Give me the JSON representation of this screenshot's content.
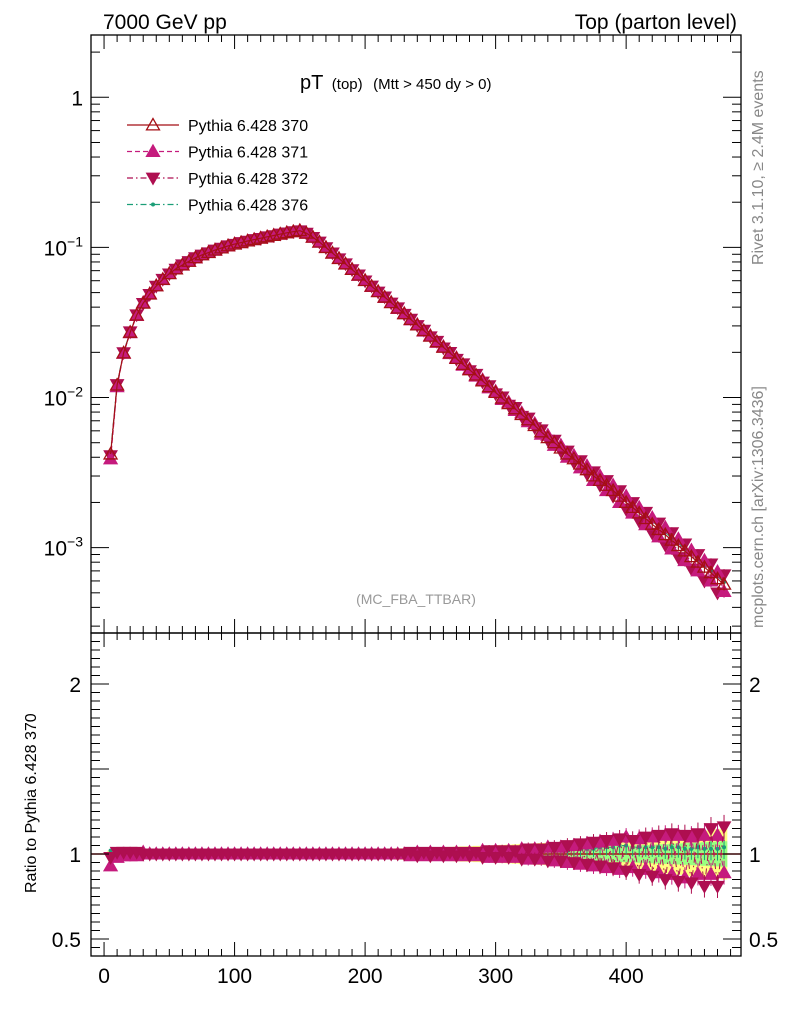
{
  "header": {
    "left": "7000 GeV pp",
    "right": "Top (parton level)"
  },
  "side_labels": {
    "rivet": "Rivet 3.1.10, ≥ 2.4M events",
    "mcplots": "mcplots.cern.ch [arXiv:1306.3436]"
  },
  "plot_title": {
    "main": "pT",
    "sub": "(top)",
    "cut": "(Mtt > 450 dy > 0)"
  },
  "analysis_tag": "(MC_FBA_TTBAR)",
  "ratio_ylabel": "Ratio to Pythia 6.428 370",
  "chart_data": {
    "type": "line",
    "title": "pT (top) (Mtt > 450 dy > 0)",
    "xlabel": "",
    "ylabel": "",
    "main_panel": {
      "yscale": "log",
      "xlim": [
        -10,
        488
      ],
      "ylim": [
        0.00027,
        2.6
      ],
      "y_tick_labels": [
        "1",
        "10^-1",
        "10^-2",
        "10^-3"
      ],
      "x_tick_labels": [
        "0",
        "100",
        "200",
        "300",
        "400"
      ],
      "x": [
        5,
        10,
        15,
        20,
        25,
        30,
        35,
        40,
        45,
        50,
        55,
        60,
        65,
        70,
        75,
        80,
        85,
        90,
        95,
        100,
        105,
        110,
        115,
        120,
        125,
        130,
        135,
        140,
        145,
        150,
        155,
        160,
        165,
        170,
        175,
        180,
        185,
        190,
        195,
        200,
        205,
        210,
        215,
        220,
        225,
        230,
        235,
        240,
        245,
        250,
        255,
        260,
        265,
        270,
        275,
        280,
        285,
        290,
        295,
        300,
        305,
        310,
        315,
        320,
        325,
        330,
        335,
        340,
        345,
        350,
        355,
        360,
        365,
        370,
        375,
        380,
        385,
        390,
        395,
        400,
        405,
        410,
        415,
        420,
        425,
        430,
        435,
        440,
        445,
        450,
        455,
        460,
        465,
        470,
        475
      ],
      "series": [
        {
          "name": "Pythia 6.428 370",
          "color": "#a50f15",
          "marker": "triangle-up-open",
          "line": "solid",
          "values": [
            0.0042,
            0.0121,
            0.0198,
            0.0272,
            0.0354,
            0.0425,
            0.0489,
            0.0554,
            0.0612,
            0.0668,
            0.0719,
            0.0764,
            0.0807,
            0.0853,
            0.0892,
            0.0924,
            0.0959,
            0.0991,
            0.1024,
            0.1052,
            0.1076,
            0.1103,
            0.1128,
            0.1151,
            0.1176,
            0.1201,
            0.1226,
            0.1251,
            0.1273,
            0.1292,
            0.1244,
            0.1168,
            0.1085,
            0.0998,
            0.0917,
            0.0843,
            0.0776,
            0.0713,
            0.0654,
            0.0601,
            0.0551,
            0.0507,
            0.0466,
            0.0428,
            0.0394,
            0.0361,
            0.0331,
            0.0304,
            0.0279,
            0.0256,
            0.0235,
            0.0216,
            0.0198,
            0.0182,
            0.0166,
            0.0153,
            0.0141,
            0.0129,
            0.0118,
            0.0108,
            0.0099,
            0.0091,
            0.0084,
            0.0077,
            0.0071,
            0.0065,
            0.0059,
            0.0054,
            0.005,
            0.0046,
            0.0042,
            0.0039,
            0.0036,
            0.0033,
            0.003,
            0.0028,
            0.0026,
            0.0024,
            0.0022,
            0.002,
            0.00185,
            0.0017,
            0.00156,
            0.00143,
            0.00132,
            0.00122,
            0.00112,
            0.00103,
            0.00095,
            0.00087,
            0.0008,
            0.00074,
            0.00068,
            0.00062,
            0.00057
          ]
        },
        {
          "name": "Pythia 6.428 371",
          "color": "#c51b7d",
          "marker": "triangle-up-filled",
          "line": "dashed",
          "values": [
            0.0039,
            0.0118,
            0.0197,
            0.027,
            0.0352,
            0.0428,
            0.0491,
            0.0556,
            0.061,
            0.067,
            0.0721,
            0.0762,
            0.0809,
            0.0851,
            0.0894,
            0.0926,
            0.0957,
            0.0993,
            0.1022,
            0.1054,
            0.1074,
            0.1105,
            0.1126,
            0.1153,
            0.1174,
            0.1203,
            0.1224,
            0.1253,
            0.1271,
            0.1294,
            0.1242,
            0.117,
            0.1083,
            0.1,
            0.0915,
            0.0845,
            0.0774,
            0.0715,
            0.0652,
            0.0603,
            0.0549,
            0.0509,
            0.0464,
            0.043,
            0.0392,
            0.0363,
            0.0329,
            0.0306,
            0.0277,
            0.0258,
            0.0233,
            0.0218,
            0.0196,
            0.0184,
            0.0164,
            0.0155,
            0.0139,
            0.0131,
            0.0116,
            0.011,
            0.0097,
            0.0093,
            0.0082,
            0.0079,
            0.0069,
            0.0067,
            0.0057,
            0.0056,
            0.0048,
            0.0048,
            0.004,
            0.0041,
            0.0034,
            0.0035,
            0.0028,
            0.003,
            0.0024,
            0.0026,
            0.002,
            0.0022,
            0.0017,
            0.00185,
            0.00142,
            0.00158,
            0.00118,
            0.00136,
            0.00098,
            0.00114,
            0.00082,
            0.00096,
            0.0007,
            0.00082,
            0.0006,
            0.00069,
            0.00051
          ]
        },
        {
          "name": "Pythia 6.428 372",
          "color": "#ae0f50",
          "marker": "triangle-down-filled",
          "line": "dash-dot",
          "values": [
            0.0041,
            0.0122,
            0.0199,
            0.0274,
            0.0356,
            0.0424,
            0.0487,
            0.0552,
            0.0614,
            0.0666,
            0.0717,
            0.0766,
            0.0805,
            0.0855,
            0.089,
            0.0922,
            0.0961,
            0.0989,
            0.1026,
            0.105,
            0.1078,
            0.1101,
            0.113,
            0.1149,
            0.1178,
            0.1199,
            0.1228,
            0.1249,
            0.1275,
            0.129,
            0.1246,
            0.1166,
            0.1087,
            0.0996,
            0.0919,
            0.0841,
            0.0778,
            0.0711,
            0.0656,
            0.0599,
            0.0553,
            0.0505,
            0.0468,
            0.0426,
            0.0396,
            0.0359,
            0.0333,
            0.0302,
            0.0281,
            0.0254,
            0.0237,
            0.0214,
            0.02,
            0.018,
            0.0168,
            0.0151,
            0.0143,
            0.0127,
            0.012,
            0.0106,
            0.0101,
            0.0089,
            0.0086,
            0.0075,
            0.0073,
            0.0063,
            0.0061,
            0.0052,
            0.0052,
            0.0044,
            0.0044,
            0.0037,
            0.0038,
            0.0031,
            0.0032,
            0.0026,
            0.0028,
            0.0022,
            0.0024,
            0.0018,
            0.002,
            0.0015,
            0.00172,
            0.00125,
            0.00146,
            0.00104,
            0.00126,
            0.00086,
            0.00106,
            0.00072,
            0.0009,
            0.0006,
            0.00078,
            0.0005,
            0.00066
          ]
        },
        {
          "name": "Pythia 6.428 376",
          "color": "#1b9e77",
          "marker": "dot",
          "line": "dash-dot",
          "values": [
            0.0043,
            0.0123,
            0.02,
            0.0273,
            0.0355,
            0.0426,
            0.049,
            0.0555,
            0.0613,
            0.0669,
            0.072,
            0.0765,
            0.0808,
            0.0854,
            0.0893,
            0.0925,
            0.096,
            0.0992,
            0.1025,
            0.1053,
            0.1077,
            0.1104,
            0.1129,
            0.1152,
            0.1177,
            0.1202,
            0.1227,
            0.1252,
            0.1274,
            0.1293,
            0.1245,
            0.1169,
            0.1086,
            0.0999,
            0.0918,
            0.0844,
            0.0777,
            0.0714,
            0.0655,
            0.0602,
            0.0552,
            0.0508,
            0.0467,
            0.0429,
            0.0395,
            0.0362,
            0.0332,
            0.0305,
            0.028,
            0.0257,
            0.0236,
            0.0217,
            0.0199,
            0.0183,
            0.0167,
            0.0154,
            0.0142,
            0.013,
            0.0119,
            0.0109,
            0.01,
            0.0092,
            0.0085,
            0.0078,
            0.0072,
            0.0066,
            0.006,
            0.0055,
            0.0051,
            0.0047,
            0.0043,
            0.004,
            0.0037,
            0.0034,
            0.0031,
            0.0029,
            0.0027,
            0.0025,
            0.0023,
            0.0021,
            0.00192,
            0.00176,
            0.00162,
            0.00149,
            0.00137,
            0.00126,
            0.00116,
            0.00107,
            0.00098,
            0.0009,
            0.00083,
            0.00076,
            0.0007,
            0.00064,
            0.00059
          ]
        }
      ]
    },
    "ratio_panel": {
      "ylim": [
        0.4,
        2.3
      ],
      "y_tick_labels": [
        "0.5",
        "1",
        "2"
      ],
      "band_color": "#ffff80",
      "band_color_inner": "#80ff80",
      "series": [
        {
          "name": "Pythia 6.428 371",
          "values": [
            0.93,
            0.98,
            0.99,
            0.99,
            0.99,
            1.01,
            1.0,
            1.0,
            1.0,
            1.0,
            1.0,
            1.0,
            1.0,
            1.0,
            1.0,
            1.0,
            1.0,
            1.0,
            1.0,
            1.0,
            1.0,
            1.0,
            1.0,
            1.0,
            1.0,
            1.0,
            1.0,
            1.0,
            1.0,
            1.0,
            1.0,
            1.0,
            1.0,
            1.0,
            1.0,
            1.0,
            1.0,
            1.0,
            1.0,
            1.0,
            1.0,
            1.0,
            1.0,
            1.0,
            1.0,
            1.0,
            0.99,
            1.01,
            0.99,
            1.01,
            0.99,
            1.01,
            0.99,
            1.01,
            0.99,
            1.01,
            0.99,
            1.02,
            0.98,
            1.02,
            0.98,
            1.02,
            0.98,
            1.03,
            0.97,
            1.03,
            0.97,
            1.04,
            0.96,
            1.04,
            0.95,
            1.05,
            0.94,
            1.06,
            0.93,
            1.07,
            0.92,
            1.08,
            0.91,
            1.1,
            0.92,
            1.09,
            0.91,
            1.1,
            0.89,
            1.11,
            0.88,
            1.11,
            0.86,
            1.1,
            0.88,
            1.11,
            0.88,
            1.11,
            0.89
          ]
        },
        {
          "name": "Pythia 6.428 372",
          "values": [
            0.98,
            1.01,
            1.01,
            1.01,
            1.01,
            1.0,
            1.0,
            1.0,
            1.0,
            1.0,
            1.0,
            1.0,
            1.0,
            1.0,
            1.0,
            1.0,
            1.0,
            1.0,
            1.0,
            1.0,
            1.0,
            1.0,
            1.0,
            1.0,
            1.0,
            1.0,
            1.0,
            1.0,
            1.0,
            1.0,
            1.0,
            1.0,
            1.0,
            1.0,
            1.0,
            1.0,
            1.0,
            1.0,
            1.0,
            1.0,
            1.0,
            1.0,
            1.0,
            1.0,
            1.0,
            1.0,
            1.01,
            0.99,
            1.01,
            0.99,
            1.01,
            0.99,
            1.01,
            0.99,
            1.01,
            0.99,
            1.01,
            0.98,
            1.02,
            0.98,
            1.02,
            0.98,
            1.02,
            0.97,
            1.03,
            0.97,
            1.03,
            0.96,
            1.04,
            0.96,
            1.05,
            0.95,
            1.06,
            0.94,
            1.07,
            0.93,
            1.08,
            0.92,
            1.09,
            0.9,
            1.08,
            0.88,
            1.1,
            0.87,
            1.11,
            0.85,
            1.12,
            0.84,
            1.11,
            0.83,
            1.12,
            0.81,
            1.15,
            0.81,
            1.16
          ]
        },
        {
          "name": "Pythia 6.428 376",
          "values": [
            1.02,
            1.02,
            1.01,
            1.0,
            1.0,
            1.0,
            1.0,
            1.0,
            1.0,
            1.0,
            1.0,
            1.0,
            1.0,
            1.0,
            1.0,
            1.0,
            1.0,
            1.0,
            1.0,
            1.0,
            1.0,
            1.0,
            1.0,
            1.0,
            1.0,
            1.0,
            1.0,
            1.0,
            1.0,
            1.0,
            1.0,
            1.0,
            1.0,
            1.0,
            1.0,
            1.0,
            1.0,
            1.0,
            1.0,
            1.0,
            1.0,
            1.0,
            1.0,
            1.0,
            1.0,
            1.0,
            1.0,
            1.0,
            1.0,
            1.0,
            1.0,
            1.0,
            1.0,
            1.0,
            1.0,
            1.0,
            1.0,
            1.0,
            1.0,
            1.0,
            1.01,
            1.01,
            1.01,
            1.01,
            1.01,
            1.02,
            1.02,
            1.02,
            1.02,
            1.02,
            1.02,
            1.03,
            1.03,
            1.03,
            1.03,
            1.04,
            1.04,
            1.04,
            1.05,
            1.05,
            1.04,
            1.04,
            1.04,
            1.04,
            1.04,
            1.03,
            1.04,
            1.04,
            1.03,
            1.03,
            1.04,
            1.03,
            1.03,
            1.03,
            1.04
          ]
        }
      ]
    }
  }
}
